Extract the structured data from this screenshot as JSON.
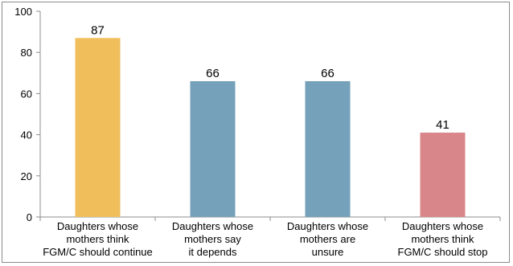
{
  "chart_data": {
    "type": "bar",
    "categories": [
      [
        "Daughters whose",
        "mothers think",
        "FGM/C should continue"
      ],
      [
        "Daughters whose",
        "mothers say",
        "it depends"
      ],
      [
        "Daughters whose",
        "mothers are",
        "unsure"
      ],
      [
        "Daughters whose",
        "mothers think",
        "FGM/C should stop"
      ]
    ],
    "values": [
      87,
      66,
      66,
      41
    ],
    "data_labels": [
      "87",
      "66",
      "66",
      "41"
    ],
    "bar_colors": [
      "#f0bf5c",
      "#76a1ba",
      "#76a1ba",
      "#d9868b"
    ],
    "ylim": [
      0,
      100
    ],
    "yticks": [
      0,
      20,
      40,
      60,
      80,
      100
    ],
    "ytick_labels": [
      "0",
      "20",
      "40",
      "60",
      "80",
      "100"
    ],
    "grid": false,
    "title": "",
    "xlabel": "",
    "ylabel": ""
  }
}
